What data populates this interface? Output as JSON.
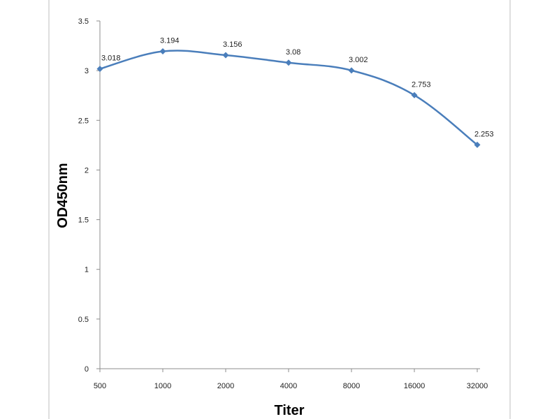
{
  "chart_data": {
    "type": "line",
    "title": "",
    "xlabel": "Titer",
    "ylabel": "OD450nm",
    "categories": [
      "500",
      "1000",
      "2000",
      "4000",
      "8000",
      "16000",
      "32000"
    ],
    "series": [
      {
        "values": [
          3.018,
          3.194,
          3.156,
          3.08,
          3.002,
          2.753,
          2.253
        ],
        "labels": [
          "3.018",
          "3.194",
          "3.156",
          "3.08",
          "3.002",
          "2.753",
          "2.253"
        ]
      }
    ],
    "ylim": [
      0,
      3.5
    ],
    "yticks": [
      "0",
      "0.5",
      "1",
      "1.5",
      "2",
      "2.5",
      "3",
      "3.5"
    ],
    "ytick_values": [
      0,
      0.5,
      1,
      1.5,
      2,
      2.5,
      3,
      3.5
    ],
    "grid": false,
    "legend": "none",
    "line_color": "#4a7ebb",
    "frame_color": "#8c8c8c"
  }
}
